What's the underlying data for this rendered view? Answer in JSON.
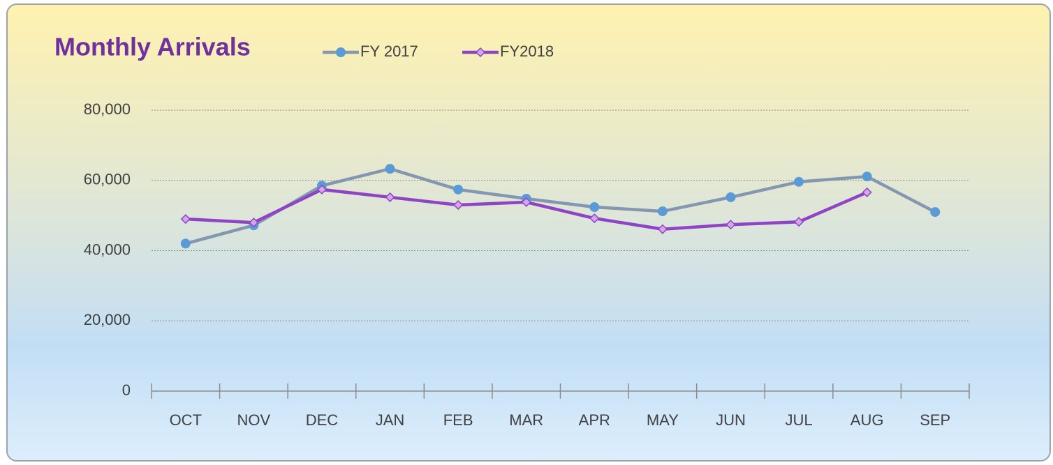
{
  "chart_data": {
    "type": "line",
    "title": "Monthly Arrivals",
    "categories": [
      "OCT",
      "NOV",
      "DEC",
      "JAN",
      "FEB",
      "MAR",
      "APR",
      "MAY",
      "JUN",
      "JUL",
      "AUG",
      "SEP"
    ],
    "series": [
      {
        "name": "FY 2017",
        "color": "#8497b0",
        "marker": "circle",
        "marker_color": "#5b9bd5",
        "values": [
          42000,
          47200,
          58500,
          63300,
          57400,
          54800,
          52400,
          51200,
          55200,
          59600,
          61100,
          51000
        ]
      },
      {
        "name": "FY2018",
        "color": "#8e44c4",
        "marker": "diamond",
        "marker_color": "#d7a6ea",
        "values": [
          49000,
          48000,
          57400,
          55200,
          53000,
          53800,
          49200,
          46100,
          47400,
          48200,
          56600,
          null
        ]
      }
    ],
    "ylim": [
      0,
      80000
    ],
    "yticks": [
      0,
      {
        "value": 20000,
        "label": "20,000"
      },
      {
        "value": 40000,
        "label": "40,000"
      },
      {
        "value": 60000,
        "label": "60,000"
      },
      {
        "value": 80000,
        "label": "80,000"
      }
    ],
    "grid": true
  }
}
